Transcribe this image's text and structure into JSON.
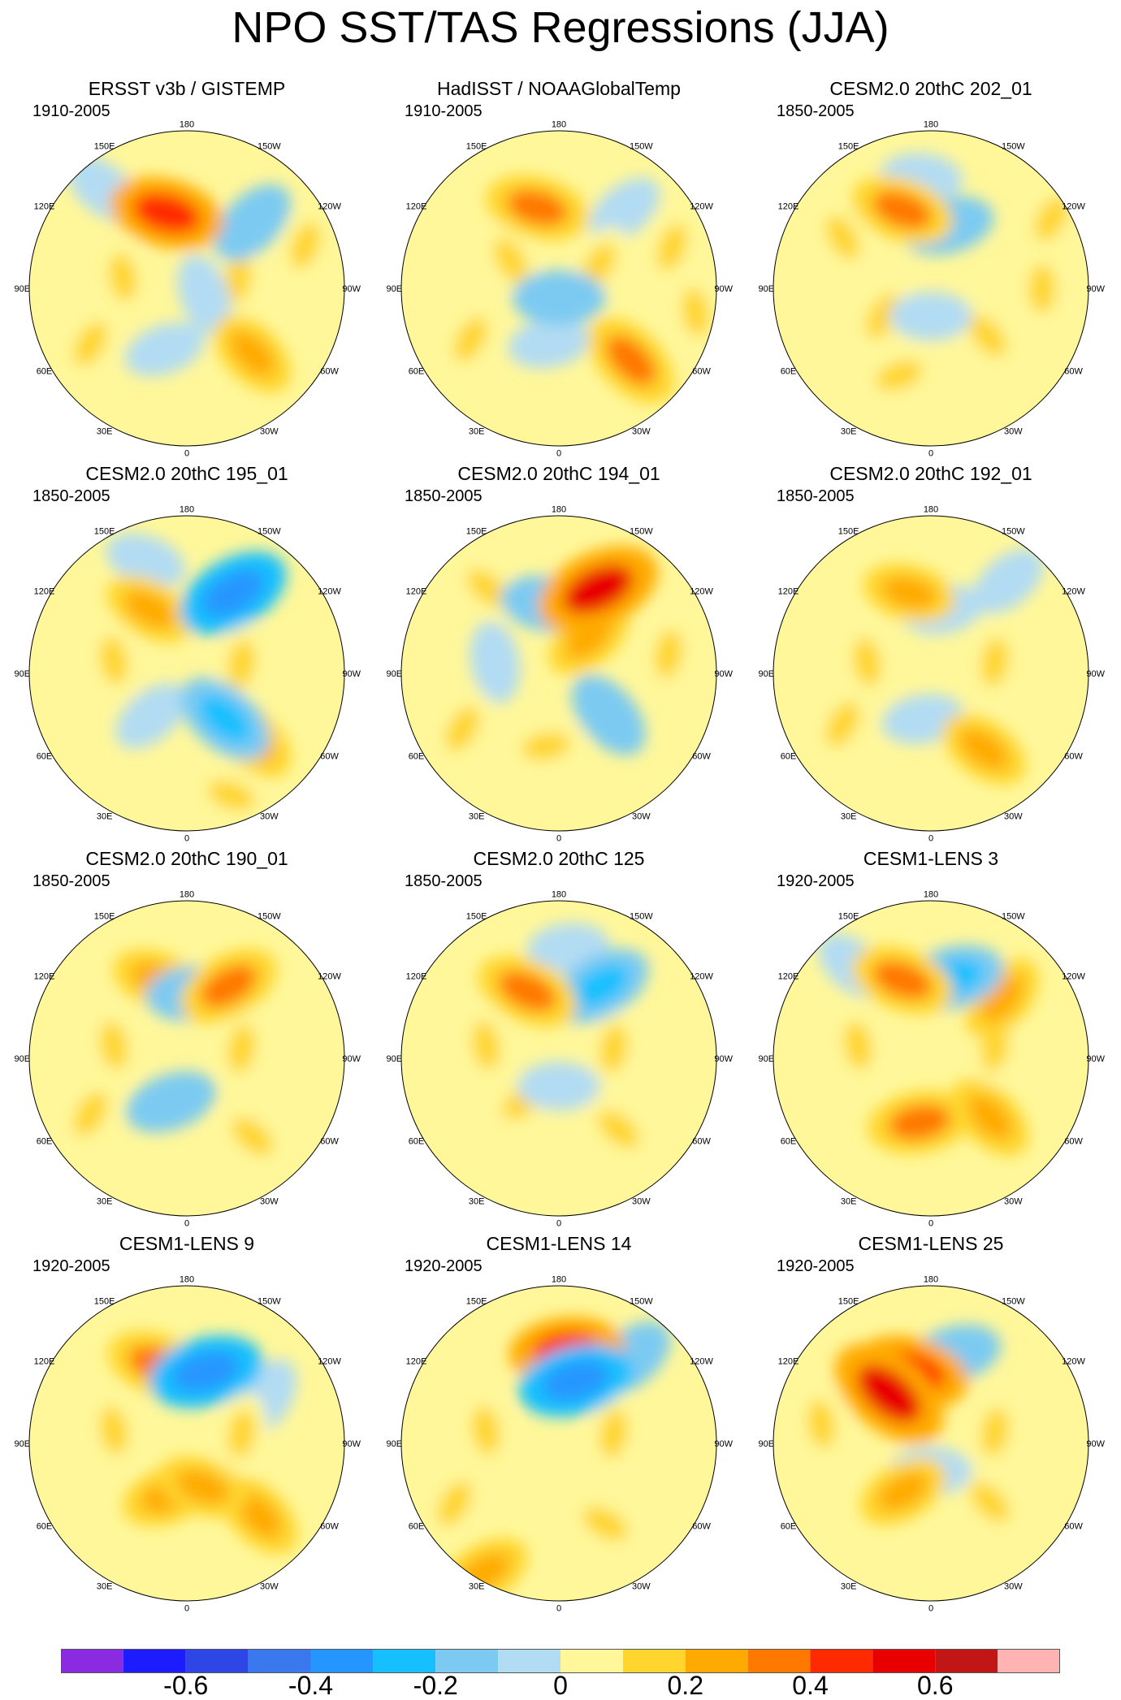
{
  "title": "NPO SST/TAS Regressions (JJA)",
  "longitude_labels": [
    "180",
    "150E",
    "120E",
    "90E",
    "60E",
    "30E",
    "0",
    "30W",
    "60W",
    "90W",
    "120W",
    "150W"
  ],
  "colorbar": {
    "colors": [
      "#8a2be2",
      "#1c1cff",
      "#2e46e6",
      "#3a78ee",
      "#2596ff",
      "#16c0ff",
      "#7ccaf2",
      "#b2dcf3",
      "#fff79a",
      "#ffd52e",
      "#ffaa00",
      "#ff7800",
      "#ff2a00",
      "#e80000",
      "#c21515",
      "#ffb3b3"
    ],
    "labels": [
      "-0.6",
      "-0.4",
      "-0.2",
      "0",
      "0.2",
      "0.4",
      "0.6"
    ],
    "label_values": [
      -0.6,
      -0.4,
      -0.2,
      0,
      0.2,
      0.4,
      0.6
    ]
  },
  "chart_data": {
    "type": "heatmap",
    "projection": "north polar stereographic",
    "variable": "SST/TAS regression on NPO index, JJA",
    "contour_levels": [
      -0.7,
      -0.6,
      -0.5,
      -0.4,
      -0.3,
      -0.2,
      -0.1,
      0,
      0.1,
      0.2,
      0.3,
      0.4,
      0.5,
      0.6,
      0.7
    ],
    "panels": [
      {
        "title": "ERSST v3b / GISTEMP",
        "period": "1910-2005",
        "features": [
          {
            "lon": 165,
            "lat": 48,
            "v": 0.4
          },
          {
            "lon": -135,
            "lat": 40,
            "v": -0.2
          },
          {
            "lon": -45,
            "lat": 40,
            "v": 0.2
          },
          {
            "lon": -110,
            "lat": 22,
            "v": 0.1
          },
          {
            "lon": 20,
            "lat": 55,
            "v": -0.1
          },
          {
            "lon": 100,
            "lat": 55,
            "v": 0.1
          },
          {
            "lon": -100,
            "lat": 62,
            "v": 0.1
          },
          {
            "lon": 60,
            "lat": 30,
            "v": 0.1
          },
          {
            "lon": 140,
            "lat": 20,
            "v": -0.1
          },
          {
            "lon": -70,
            "lat": 80,
            "v": -0.1
          }
        ]
      },
      {
        "title": "HadISST / NOAAGlobalTemp",
        "period": "1910-2005",
        "features": [
          {
            "lon": 165,
            "lat": 45,
            "v": 0.3
          },
          {
            "lon": -140,
            "lat": 35,
            "v": -0.1
          },
          {
            "lon": -45,
            "lat": 35,
            "v": 0.3
          },
          {
            "lon": -110,
            "lat": 25,
            "v": 0.1
          },
          {
            "lon": 10,
            "lat": 60,
            "v": -0.1
          },
          {
            "lon": -120,
            "lat": 65,
            "v": 0.1
          },
          {
            "lon": 120,
            "lat": 60,
            "v": 0.1
          },
          {
            "lon": 0,
            "lat": 85,
            "v": -0.2
          },
          {
            "lon": 60,
            "lat": 35,
            "v": 0.1
          },
          {
            "lon": -80,
            "lat": 15,
            "v": 0.1
          }
        ]
      },
      {
        "title": "CESM2.0 20thC 202_01",
        "period": "1850-2005",
        "features": [
          {
            "lon": 160,
            "lat": 45,
            "v": 0.3
          },
          {
            "lon": -165,
            "lat": 55,
            "v": -0.2
          },
          {
            "lon": 175,
            "lat": 30,
            "v": -0.1
          },
          {
            "lon": -50,
            "lat": 50,
            "v": 0.1
          },
          {
            "lon": 60,
            "lat": 60,
            "v": 0.1
          },
          {
            "lon": -90,
            "lat": 30,
            "v": 0.1
          },
          {
            "lon": 20,
            "lat": 40,
            "v": 0.1
          },
          {
            "lon": 120,
            "lat": 35,
            "v": 0.1
          },
          {
            "lon": -120,
            "lat": 15,
            "v": 0.1
          },
          {
            "lon": 0,
            "lat": 75,
            "v": -0.1
          }
        ]
      },
      {
        "title": "CESM2.0 20thC 195_01",
        "period": "1850-2005",
        "features": [
          {
            "lon": -150,
            "lat": 40,
            "v": -0.4
          },
          {
            "lon": 150,
            "lat": 50,
            "v": 0.2
          },
          {
            "lon": -45,
            "lat": 40,
            "v": 0.2
          },
          {
            "lon": -40,
            "lat": 58,
            "v": -0.3
          },
          {
            "lon": 40,
            "lat": 60,
            "v": -0.1
          },
          {
            "lon": 100,
            "lat": 50,
            "v": 0.1
          },
          {
            "lon": -100,
            "lat": 60,
            "v": 0.1
          },
          {
            "lon": 160,
            "lat": 25,
            "v": -0.1
          },
          {
            "lon": -20,
            "lat": 20,
            "v": 0.1
          }
        ]
      },
      {
        "title": "CESM2.0 20thC 194_01",
        "period": "1850-2005",
        "features": [
          {
            "lon": -155,
            "lat": 40,
            "v": 0.5
          },
          {
            "lon": 170,
            "lat": 52,
            "v": -0.2
          },
          {
            "lon": -50,
            "lat": 55,
            "v": -0.2
          },
          {
            "lon": 10,
            "lat": 50,
            "v": 0.1
          },
          {
            "lon": 100,
            "lat": 55,
            "v": -0.1
          },
          {
            "lon": 140,
            "lat": 30,
            "v": 0.1
          },
          {
            "lon": -100,
            "lat": 30,
            "v": 0.1
          },
          {
            "lon": -140,
            "lat": 65,
            "v": 0.2
          },
          {
            "lon": 60,
            "lat": 30,
            "v": 0.1
          }
        ]
      },
      {
        "title": "CESM2.0 20thC 192_01",
        "period": "1850-2005",
        "features": [
          {
            "lon": 165,
            "lat": 45,
            "v": 0.2
          },
          {
            "lon": -170,
            "lat": 55,
            "v": -0.1
          },
          {
            "lon": -35,
            "lat": 40,
            "v": 0.2
          },
          {
            "lon": 10,
            "lat": 65,
            "v": -0.1
          },
          {
            "lon": 100,
            "lat": 55,
            "v": 0.1
          },
          {
            "lon": -100,
            "lat": 55,
            "v": 0.1
          },
          {
            "lon": -140,
            "lat": 25,
            "v": -0.1
          },
          {
            "lon": 60,
            "lat": 35,
            "v": 0.1
          }
        ]
      },
      {
        "title": "CESM2.0 20thC 190_01",
        "period": "1850-2005",
        "features": [
          {
            "lon": -150,
            "lat": 45,
            "v": 0.3
          },
          {
            "lon": 160,
            "lat": 45,
            "v": 0.2
          },
          {
            "lon": -175,
            "lat": 55,
            "v": -0.2
          },
          {
            "lon": 20,
            "lat": 65,
            "v": -0.2
          },
          {
            "lon": -40,
            "lat": 35,
            "v": 0.1
          },
          {
            "lon": 100,
            "lat": 50,
            "v": 0.1
          },
          {
            "lon": -100,
            "lat": 60,
            "v": 0.1
          },
          {
            "lon": 60,
            "lat": 30,
            "v": 0.1
          }
        ]
      },
      {
        "title": "CESM2.0 20thC 125",
        "period": "1850-2005",
        "features": [
          {
            "lon": -150,
            "lat": 45,
            "v": -0.3
          },
          {
            "lon": 155,
            "lat": 50,
            "v": 0.3
          },
          {
            "lon": -175,
            "lat": 30,
            "v": -0.1
          },
          {
            "lon": -40,
            "lat": 40,
            "v": 0.1
          },
          {
            "lon": 40,
            "lat": 60,
            "v": 0.1
          },
          {
            "lon": 100,
            "lat": 50,
            "v": 0.1
          },
          {
            "lon": -100,
            "lat": 60,
            "v": 0.1
          },
          {
            "lon": 0,
            "lat": 75,
            "v": -0.1
          }
        ]
      },
      {
        "title": "CESM1-LENS 3",
        "period": "1920-2005",
        "features": [
          {
            "lon": -165,
            "lat": 45,
            "v": -0.3
          },
          {
            "lon": 160,
            "lat": 45,
            "v": 0.3
          },
          {
            "lon": -130,
            "lat": 40,
            "v": 0.2
          },
          {
            "lon": -45,
            "lat": 45,
            "v": 0.2
          },
          {
            "lon": 10,
            "lat": 55,
            "v": 0.3
          },
          {
            "lon": 100,
            "lat": 50,
            "v": 0.1
          },
          {
            "lon": -100,
            "lat": 55,
            "v": 0.1
          },
          {
            "lon": 140,
            "lat": 25,
            "v": -0.1
          }
        ]
      },
      {
        "title": "CESM1-LENS 9",
        "period": "1920-2005",
        "features": [
          {
            "lon": -165,
            "lat": 50,
            "v": -0.4
          },
          {
            "lon": 160,
            "lat": 45,
            "v": 0.3
          },
          {
            "lon": -45,
            "lat": 35,
            "v": 0.2
          },
          {
            "lon": 20,
            "lat": 60,
            "v": 0.2
          },
          {
            "lon": -120,
            "lat": 40,
            "v": -0.1
          },
          {
            "lon": 100,
            "lat": 50,
            "v": 0.1
          },
          {
            "lon": -100,
            "lat": 60,
            "v": 0.1
          },
          {
            "lon": -20,
            "lat": 65,
            "v": 0.2
          }
        ]
      },
      {
        "title": "CESM1-LENS 14",
        "period": "1920-2005",
        "features": [
          {
            "lon": -175,
            "lat": 40,
            "v": 0.4
          },
          {
            "lon": -165,
            "lat": 55,
            "v": -0.4
          },
          {
            "lon": -140,
            "lat": 30,
            "v": -0.2
          },
          {
            "lon": 60,
            "lat": 25,
            "v": 0.1
          },
          {
            "lon": -30,
            "lat": 40,
            "v": 0.1
          },
          {
            "lon": 100,
            "lat": 50,
            "v": 0.1
          },
          {
            "lon": -100,
            "lat": 60,
            "v": 0.1
          },
          {
            "lon": 30,
            "lat": 10,
            "v": 0.2
          }
        ]
      },
      {
        "title": "CESM1-LENS 25",
        "period": "1920-2005",
        "features": [
          {
            "lon": 165,
            "lat": 50,
            "v": 0.4
          },
          {
            "lon": -165,
            "lat": 40,
            "v": -0.2
          },
          {
            "lon": 140,
            "lat": 55,
            "v": 0.5
          },
          {
            "lon": 30,
            "lat": 60,
            "v": 0.2
          },
          {
            "lon": -45,
            "lat": 45,
            "v": 0.1
          },
          {
            "lon": -100,
            "lat": 55,
            "v": 0.1
          },
          {
            "lon": 100,
            "lat": 30,
            "v": 0.1
          },
          {
            "lon": 0,
            "lat": 75,
            "v": -0.1
          }
        ]
      }
    ]
  }
}
